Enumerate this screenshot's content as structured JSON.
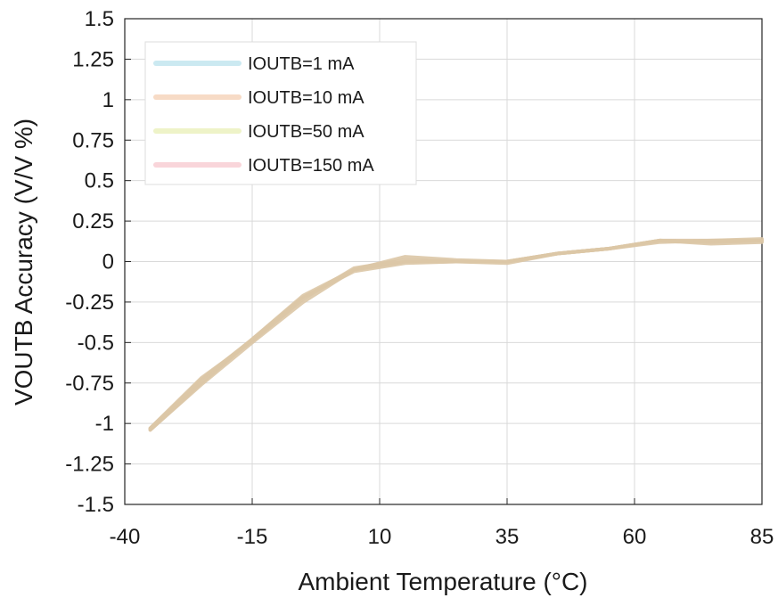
{
  "chart_data": {
    "type": "line",
    "xlabel": "Ambient Temperature (°C)",
    "ylabel": "VOUTB Accuracy (V/V %)",
    "xlim": [
      -40,
      85
    ],
    "ylim": [
      -1.5,
      1.5
    ],
    "xticks": [
      -40,
      -15,
      10,
      35,
      60,
      85
    ],
    "xtick_labels": [
      "-40",
      "-15",
      "10",
      "35",
      "60",
      "85"
    ],
    "yticks": [
      1.5,
      1.25,
      1,
      0.75,
      0.5,
      0.25,
      0,
      -0.25,
      -0.5,
      -0.75,
      -1,
      -1.25,
      -1.5
    ],
    "ytick_labels": [
      "1.5",
      "1.25",
      "1",
      "0.75",
      "0.5",
      "0.25",
      "0",
      "-0.25",
      "-0.5",
      "-0.75",
      "-1",
      "-1.25",
      "-1.5"
    ],
    "grid": true,
    "legend_position": "top-left",
    "x": [
      -35,
      -25,
      -15,
      -5,
      5,
      15,
      25,
      35,
      45,
      55,
      65,
      75,
      85
    ],
    "series": [
      {
        "name": "IOUTB=1 mA",
        "color": "#cbe9f1",
        "values": [
          -1.04,
          -0.76,
          -0.5,
          -0.25,
          -0.05,
          0.03,
          0.01,
          0.0,
          0.05,
          0.08,
          0.13,
          0.13,
          0.13
        ]
      },
      {
        "name": "IOUTB=10 mA",
        "color": "#f7dbc6",
        "values": [
          -1.03,
          -0.73,
          -0.48,
          -0.21,
          -0.05,
          0.0,
          0.0,
          0.0,
          0.05,
          0.08,
          0.13,
          0.12,
          0.13
        ]
      },
      {
        "name": "IOUTB=50 mA",
        "color": "#eef3c8",
        "values": [
          -1.04,
          -0.75,
          -0.48,
          -0.22,
          -0.06,
          -0.01,
          0.0,
          0.0,
          0.05,
          0.08,
          0.12,
          0.13,
          0.14
        ]
      },
      {
        "name": "IOUTB=150 mA",
        "color": "#f9d5da",
        "values": [
          -1.03,
          -0.72,
          -0.49,
          -0.23,
          -0.04,
          0.01,
          0.0,
          -0.01,
          0.05,
          0.08,
          0.13,
          0.11,
          0.12
        ]
      }
    ],
    "line_color": "#dcc6a6"
  }
}
